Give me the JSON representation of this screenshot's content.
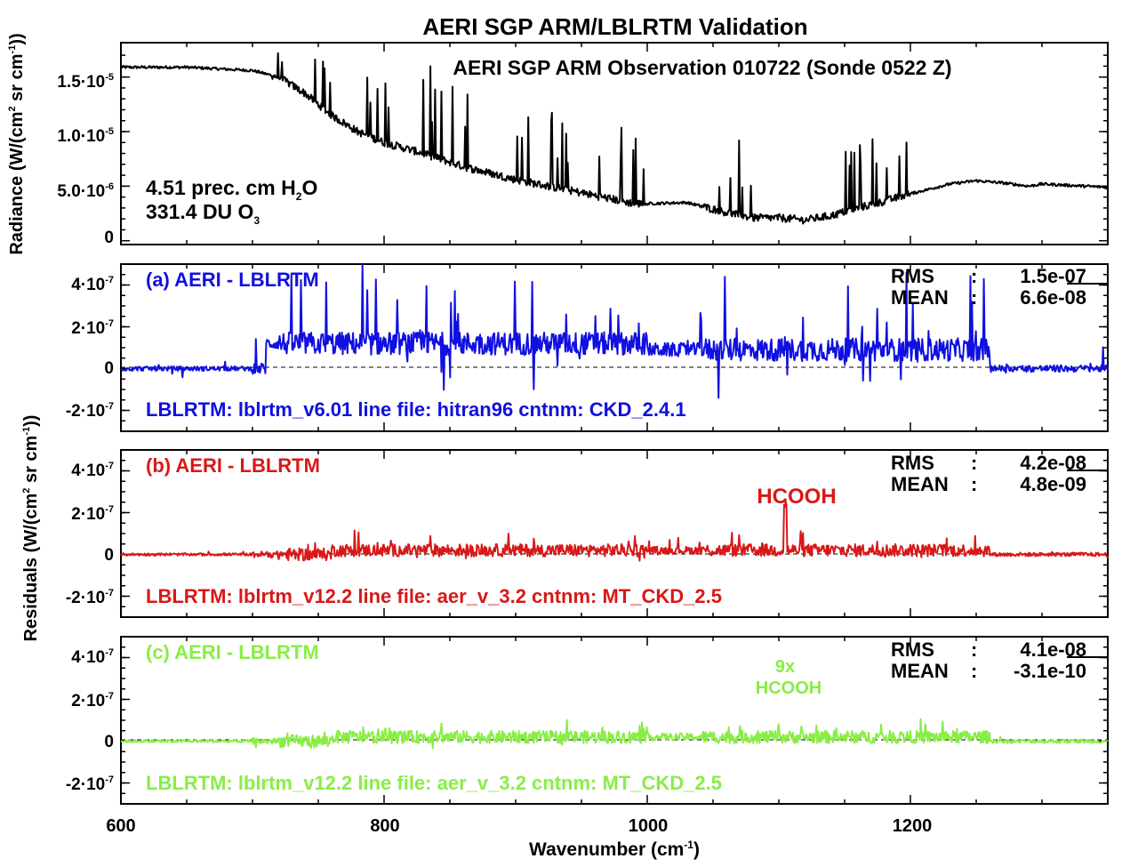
{
  "figure": {
    "title": "AERI SGP ARM/LBLRTM Validation",
    "xlabel": "Wavenumber (cm",
    "xlabel_sup": "-1",
    "xlabel_end": ")",
    "x_ticks": [
      "600",
      "800",
      "1000",
      "1200"
    ],
    "ylabel_top": "Radiance (W/(cm",
    "ylabel_top_sup2": "2",
    "ylabel_top_mid": " sr cm",
    "ylabel_top_sup1": "-1",
    "ylabel_top_end": "))",
    "ylabel_bottom": "Residuals (W/(cm",
    "ylabel_bottom_sup2": "2",
    "ylabel_bottom_mid": " sr cm",
    "ylabel_bottom_sup1": "-1",
    "ylabel_bottom_end": "))",
    "colors": {
      "radiance": "#000000",
      "a": "#1010e0",
      "b": "#d81818",
      "c": "#88ee44"
    }
  },
  "chart_data": [
    {
      "type": "line",
      "id": "radiance",
      "title": "AERI  SGP ARM Observation 010722  (Sonde 0522 Z)",
      "y_ticks": [
        "1.5·10",
        "1.0·10",
        "5.0·10",
        "0"
      ],
      "y_tick_exps": [
        "-5",
        "-5",
        "-6",
        ""
      ],
      "ylim": [
        -3.5e-07,
        1.815e-05
      ],
      "xlim": [
        600,
        1350
      ],
      "annotation_h2o": "4.51 prec. cm H",
      "annotation_h2o_sub": "2",
      "annotation_h2o_end": "O",
      "annotation_o3": "331.4 DU O",
      "annotation_o3_sub": "3",
      "series_points": [
        [
          600,
          1.59e-05
        ],
        [
          650,
          1.59e-05
        ],
        [
          700,
          1.56e-05
        ],
        [
          720,
          1.5e-05
        ],
        [
          740,
          1.35e-05
        ],
        [
          760,
          1.15e-05
        ],
        [
          780,
          1e-05
        ],
        [
          800,
          9e-06
        ],
        [
          830,
          8e-06
        ],
        [
          860,
          6.8e-06
        ],
        [
          900,
          5.6e-06
        ],
        [
          950,
          4.4e-06
        ],
        [
          990,
          3.4e-06
        ],
        [
          1000,
          3.4e-06
        ],
        [
          1030,
          3.5e-06
        ],
        [
          1060,
          2.6e-06
        ],
        [
          1080,
          2.1e-06
        ],
        [
          1100,
          2.1e-06
        ],
        [
          1120,
          1.9e-06
        ],
        [
          1140,
          2.3e-06
        ],
        [
          1160,
          3e-06
        ],
        [
          1180,
          3.6e-06
        ],
        [
          1200,
          4.3e-06
        ],
        [
          1230,
          5.2e-06
        ],
        [
          1250,
          5.5e-06
        ],
        [
          1270,
          5.3e-06
        ],
        [
          1290,
          5e-06
        ],
        [
          1300,
          5.2e-06
        ],
        [
          1350,
          4.9e-06
        ]
      ]
    },
    {
      "type": "line",
      "id": "residual_a",
      "label": "(a)  AERI - LBLRTM",
      "rms_label": "RMS",
      "rms_value": "1.5e-07",
      "mean_label": "MEAN",
      "mean_value": "6.6e-08",
      "config": "LBLRTM:  lblrtm_v6.01   line file: hitran96   cntnm: CKD_2.4.1",
      "y_ticks": [
        "4·10",
        "2·10",
        "0",
        "-2·10"
      ],
      "y_tick_exps": [
        "-7",
        "-7",
        "",
        "-7"
      ],
      "ylim": [
        -3e-07,
        5e-07
      ],
      "rms": 1.5e-07,
      "mean": 6.6e-08
    },
    {
      "type": "line",
      "id": "residual_b",
      "label": "(b)  AERI - LBLRTM",
      "rms_label": "RMS",
      "rms_value": "4.2e-08",
      "mean_label": "MEAN",
      "mean_value": "4.8e-09",
      "config": "LBLRTM:  lblrtm_v12.2   line file: aer_v_3.2   cntnm: MT_CKD_2.5",
      "annotation": "HCOOH",
      "y_ticks": [
        "4·10",
        "2·10",
        "0",
        "-2·10"
      ],
      "y_tick_exps": [
        "-7",
        "-7",
        "",
        "-7"
      ],
      "ylim": [
        -3e-07,
        5e-07
      ],
      "rms": 4.2e-08,
      "mean": 4.8e-09
    },
    {
      "type": "line",
      "id": "residual_c",
      "label": "(c)  AERI - LBLRTM",
      "rms_label": "RMS",
      "rms_value": "4.1e-08",
      "mean_label": "MEAN",
      "mean_value": "-3.1e-10",
      "config": "LBLRTM:  lblrtm_v12.2   line file: aer_v_3.2   cntnm: MT_CKD_2.5",
      "annotation_line1": "9x",
      "annotation_line2": "HCOOH",
      "y_ticks": [
        "4·10",
        "2·10",
        "0",
        "-2·10"
      ],
      "y_tick_exps": [
        "-7",
        "-7",
        "",
        "-7"
      ],
      "ylim": [
        -3e-07,
        5e-07
      ],
      "rms": 4.1e-08,
      "mean": -3.1e-10
    }
  ]
}
